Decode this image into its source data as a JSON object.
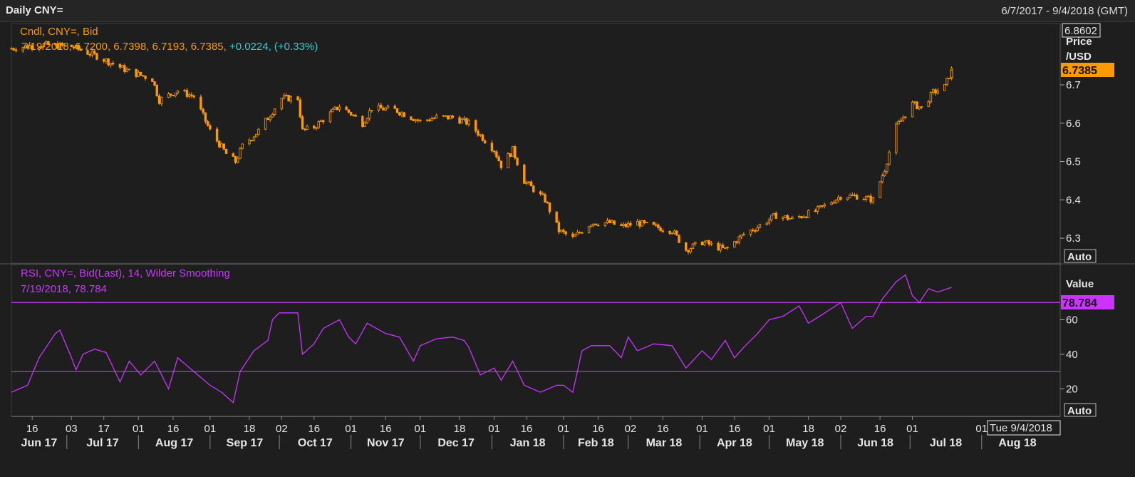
{
  "header": {
    "title": "Daily CNY=",
    "range": "6/7/2017 - 9/4/2018 (GMT)"
  },
  "price_panel": {
    "legend_line1": "Cndl, CNY=, Bid",
    "legend_ohlc": "7/19/2018, 6.7200, 6.7398, 6.7193, 6.7385,",
    "legend_change": " +0.0224, (+0.33%)",
    "top_value": "6.8602",
    "axis_title_1": "Price",
    "axis_title_2": "/USD",
    "last_value": "6.7385",
    "auto_button": "Auto",
    "accent": "#ff9900"
  },
  "rsi_panel": {
    "legend_line1": "RSI, CNY=, Bid(Last),  14, Wilder Smoothing",
    "legend_line2": "7/19/2018, 78.784",
    "axis_title": "Value",
    "last_value": "78.784",
    "auto_button": "Auto",
    "accent": "#cc33ff"
  },
  "time_axis": {
    "cursor_label": "Tue 9/4/2018"
  },
  "chart_data": [
    {
      "type": "candlestick",
      "title": "Cndl, CNY=, Bid",
      "ylabel": "Price /USD",
      "ylim": [
        6.235,
        6.86
      ],
      "yticks": [
        6.3,
        6.4,
        6.5,
        6.6,
        6.7
      ],
      "xlim": [
        "2017-06-07",
        "2018-09-04"
      ],
      "x_month_labels": [
        "Jun 17",
        "Jul 17",
        "Aug 17",
        "Sep 17",
        "Oct 17",
        "Nov 17",
        "Dec 17",
        "Jan 18",
        "Feb 18",
        "Mar 18",
        "Apr 18",
        "May 18",
        "Jun 18",
        "Jul 18",
        "Aug 18"
      ],
      "x_day_labels": [
        "16",
        "03",
        "17",
        "01",
        "16",
        "01",
        "18",
        "02",
        "16",
        "01",
        "16",
        "01",
        "18",
        "01",
        "16",
        "01",
        "16",
        "02",
        "16",
        "01",
        "16",
        "01",
        "18",
        "02",
        "16",
        "01"
      ],
      "last": {
        "date": "2018-07-19",
        "open": 6.72,
        "high": 6.7398,
        "low": 6.7193,
        "close": 6.7385
      },
      "close_path": [
        [
          "2017-06-07",
          6.795
        ],
        [
          "2017-06-20",
          6.805
        ],
        [
          "2017-07-03",
          6.8
        ],
        [
          "2017-07-14",
          6.775
        ],
        [
          "2017-07-28",
          6.735
        ],
        [
          "2017-08-07",
          6.715
        ],
        [
          "2017-08-10",
          6.66
        ],
        [
          "2017-08-18",
          6.685
        ],
        [
          "2017-08-25",
          6.67
        ],
        [
          "2017-09-01",
          6.58
        ],
        [
          "2017-09-08",
          6.52
        ],
        [
          "2017-09-12",
          6.5
        ],
        [
          "2017-09-15",
          6.54
        ],
        [
          "2017-09-22",
          6.58
        ],
        [
          "2017-09-29",
          6.64
        ],
        [
          "2017-10-02",
          6.665
        ],
        [
          "2017-10-09",
          6.665
        ],
        [
          "2017-10-11",
          6.58
        ],
        [
          "2017-10-16",
          6.59
        ],
        [
          "2017-10-27",
          6.645
        ],
        [
          "2017-11-01",
          6.625
        ],
        [
          "2017-11-06",
          6.6
        ],
        [
          "2017-11-10",
          6.64
        ],
        [
          "2017-11-20",
          6.635
        ],
        [
          "2017-12-01",
          6.605
        ],
        [
          "2017-12-08",
          6.615
        ],
        [
          "2017-12-15",
          6.615
        ],
        [
          "2017-12-22",
          6.6
        ],
        [
          "2018-01-02",
          6.53
        ],
        [
          "2018-01-05",
          6.49
        ],
        [
          "2018-01-10",
          6.53
        ],
        [
          "2018-01-15",
          6.45
        ],
        [
          "2018-01-24",
          6.4
        ],
        [
          "2018-01-30",
          6.32
        ],
        [
          "2018-02-05",
          6.3
        ],
        [
          "2018-02-09",
          6.32
        ],
        [
          "2018-02-13",
          6.34
        ],
        [
          "2018-02-21",
          6.34
        ],
        [
          "2018-02-26",
          6.33
        ],
        [
          "2018-03-05",
          6.34
        ],
        [
          "2018-03-12",
          6.33
        ],
        [
          "2018-03-20",
          6.32
        ],
        [
          "2018-03-26",
          6.27
        ],
        [
          "2018-04-02",
          6.29
        ],
        [
          "2018-04-12",
          6.27
        ],
        [
          "2018-04-20",
          6.31
        ],
        [
          "2018-04-26",
          6.33
        ],
        [
          "2018-05-04",
          6.36
        ],
        [
          "2018-05-11",
          6.35
        ],
        [
          "2018-05-21",
          6.37
        ],
        [
          "2018-06-01",
          6.41
        ],
        [
          "2018-06-08",
          6.41
        ],
        [
          "2018-06-15",
          6.4
        ],
        [
          "2018-06-20",
          6.48
        ],
        [
          "2018-06-25",
          6.59
        ],
        [
          "2018-07-02",
          6.65
        ],
        [
          "2018-07-06",
          6.64
        ],
        [
          "2018-07-11",
          6.68
        ],
        [
          "2018-07-16",
          6.695
        ],
        [
          "2018-07-19",
          6.7385
        ]
      ]
    },
    {
      "type": "line",
      "title": "RSI, CNY=, Bid(Last),  14, Wilder Smoothing",
      "ylabel": "Value",
      "ylim": [
        4,
        92
      ],
      "yticks": [
        20,
        40,
        60
      ],
      "reference_lines": [
        70,
        30
      ],
      "last": {
        "date": "2018-07-19",
        "value": 78.784
      },
      "values": [
        [
          "2017-06-07",
          18
        ],
        [
          "2017-06-14",
          22
        ],
        [
          "2017-06-19",
          38
        ],
        [
          "2017-06-26",
          52
        ],
        [
          "2017-06-28",
          54
        ],
        [
          "2017-07-03",
          38
        ],
        [
          "2017-07-05",
          31
        ],
        [
          "2017-07-08",
          40
        ],
        [
          "2017-07-13",
          43
        ],
        [
          "2017-07-18",
          41
        ],
        [
          "2017-07-24",
          24
        ],
        [
          "2017-07-28",
          36
        ],
        [
          "2017-08-02",
          28
        ],
        [
          "2017-08-08",
          36
        ],
        [
          "2017-08-14",
          20
        ],
        [
          "2017-08-18",
          38
        ],
        [
          "2017-08-25",
          30
        ],
        [
          "2017-09-01",
          22
        ],
        [
          "2017-09-06",
          18
        ],
        [
          "2017-09-11",
          12
        ],
        [
          "2017-09-14",
          30
        ],
        [
          "2017-09-20",
          42
        ],
        [
          "2017-09-26",
          48
        ],
        [
          "2017-09-28",
          60
        ],
        [
          "2017-10-01",
          64
        ],
        [
          "2017-10-09",
          64
        ],
        [
          "2017-10-11",
          40
        ],
        [
          "2017-10-16",
          46
        ],
        [
          "2017-10-20",
          55
        ],
        [
          "2017-10-27",
          60
        ],
        [
          "2017-10-31",
          50
        ],
        [
          "2017-11-03",
          46
        ],
        [
          "2017-11-08",
          58
        ],
        [
          "2017-11-16",
          52
        ],
        [
          "2017-11-22",
          50
        ],
        [
          "2017-11-28",
          36
        ],
        [
          "2017-12-01",
          45
        ],
        [
          "2017-12-08",
          49
        ],
        [
          "2017-12-15",
          50
        ],
        [
          "2017-12-20",
          48
        ],
        [
          "2017-12-22",
          44
        ],
        [
          "2017-12-27",
          28
        ],
        [
          "2018-01-02",
          32
        ],
        [
          "2018-01-05",
          25
        ],
        [
          "2018-01-10",
          36
        ],
        [
          "2018-01-15",
          22
        ],
        [
          "2018-01-22",
          18
        ],
        [
          "2018-01-29",
          22
        ],
        [
          "2018-02-01",
          22
        ],
        [
          "2018-02-05",
          18
        ],
        [
          "2018-02-09",
          42
        ],
        [
          "2018-02-13",
          45
        ],
        [
          "2018-02-21",
          45
        ],
        [
          "2018-02-26",
          38
        ],
        [
          "2018-03-01",
          50
        ],
        [
          "2018-03-05",
          42
        ],
        [
          "2018-03-12",
          46
        ],
        [
          "2018-03-20",
          45
        ],
        [
          "2018-03-26",
          32
        ],
        [
          "2018-04-02",
          42
        ],
        [
          "2018-04-06",
          37
        ],
        [
          "2018-04-12",
          48
        ],
        [
          "2018-04-16",
          38
        ],
        [
          "2018-04-20",
          44
        ],
        [
          "2018-04-26",
          52
        ],
        [
          "2018-05-01",
          60
        ],
        [
          "2018-05-07",
          62
        ],
        [
          "2018-05-14",
          68
        ],
        [
          "2018-05-18",
          58
        ],
        [
          "2018-05-24",
          63
        ],
        [
          "2018-06-01",
          70
        ],
        [
          "2018-06-06",
          55
        ],
        [
          "2018-06-12",
          62
        ],
        [
          "2018-06-15",
          62
        ],
        [
          "2018-06-19",
          72
        ],
        [
          "2018-06-25",
          82
        ],
        [
          "2018-06-29",
          86
        ],
        [
          "2018-07-02",
          74
        ],
        [
          "2018-07-05",
          70
        ],
        [
          "2018-07-09",
          78
        ],
        [
          "2018-07-13",
          76
        ],
        [
          "2018-07-19",
          78.784
        ]
      ]
    }
  ]
}
